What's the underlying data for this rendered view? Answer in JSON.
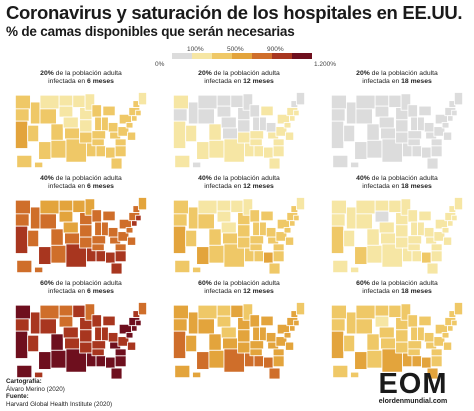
{
  "title": "Coronavirus y saturación de los hospitales en EE.UU.",
  "subtitle": "% de camas disponibles que serán necesarias",
  "legend": {
    "labels": [
      {
        "text": "0%",
        "row": "bot",
        "at": 0
      },
      {
        "text": "100%",
        "row": "top",
        "at": 1
      },
      {
        "text": "500%",
        "row": "top",
        "at": 3
      },
      {
        "text": "900%",
        "row": "top",
        "at": 5
      },
      {
        "text": "1.200%",
        "row": "bot",
        "at": 6
      }
    ],
    "colors": [
      "#dcdcdc",
      "#f6e6a4",
      "#efc867",
      "#e3a43c",
      "#cf6e2a",
      "#a8361f",
      "#6e0f1e"
    ]
  },
  "panels": [
    {
      "pct": "20%",
      "line1": " de la población adulta",
      "line2": "infectada en ",
      "period": "6 meses",
      "level": 1
    },
    {
      "pct": "20%",
      "line1": " de la población adulta",
      "line2": "infectada en ",
      "period": "12 meses",
      "level": 0.5
    },
    {
      "pct": "20%",
      "line1": " de la población adulta",
      "line2": "infectada en ",
      "period": "18 meses",
      "level": 0.3
    },
    {
      "pct": "40%",
      "line1": " de la población adulta",
      "line2": "infectada en ",
      "period": "6 meses",
      "level": 2.6
    },
    {
      "pct": "40%",
      "line1": " de la población adulta",
      "line2": "infectada en ",
      "period": "12 meses",
      "level": 1.1
    },
    {
      "pct": "40%",
      "line1": " de la población adulta",
      "line2": "infectada en ",
      "period": "18 meses",
      "level": 0.7
    },
    {
      "pct": "60%",
      "line1": " de la población adulta",
      "line2": "infectada en ",
      "period": "6 meses",
      "level": 3.8
    },
    {
      "pct": "60%",
      "line1": " de la población adulta",
      "line2": "infectada en ",
      "period": "12 meses",
      "level": 1.8
    },
    {
      "pct": "60%",
      "line1": " de la población adulta",
      "line2": "infectada en ",
      "period": "18 meses",
      "level": 1.2
    }
  ],
  "credits": {
    "cartography_label": "Cartografía:",
    "cartography_value": "Álvaro Merino (2020)",
    "source_label": "Fuente:",
    "source_value": "Harvard Global Health Institute (2020)"
  },
  "logo": {
    "mark": "EOM",
    "site": "elordenmundial.com"
  }
}
